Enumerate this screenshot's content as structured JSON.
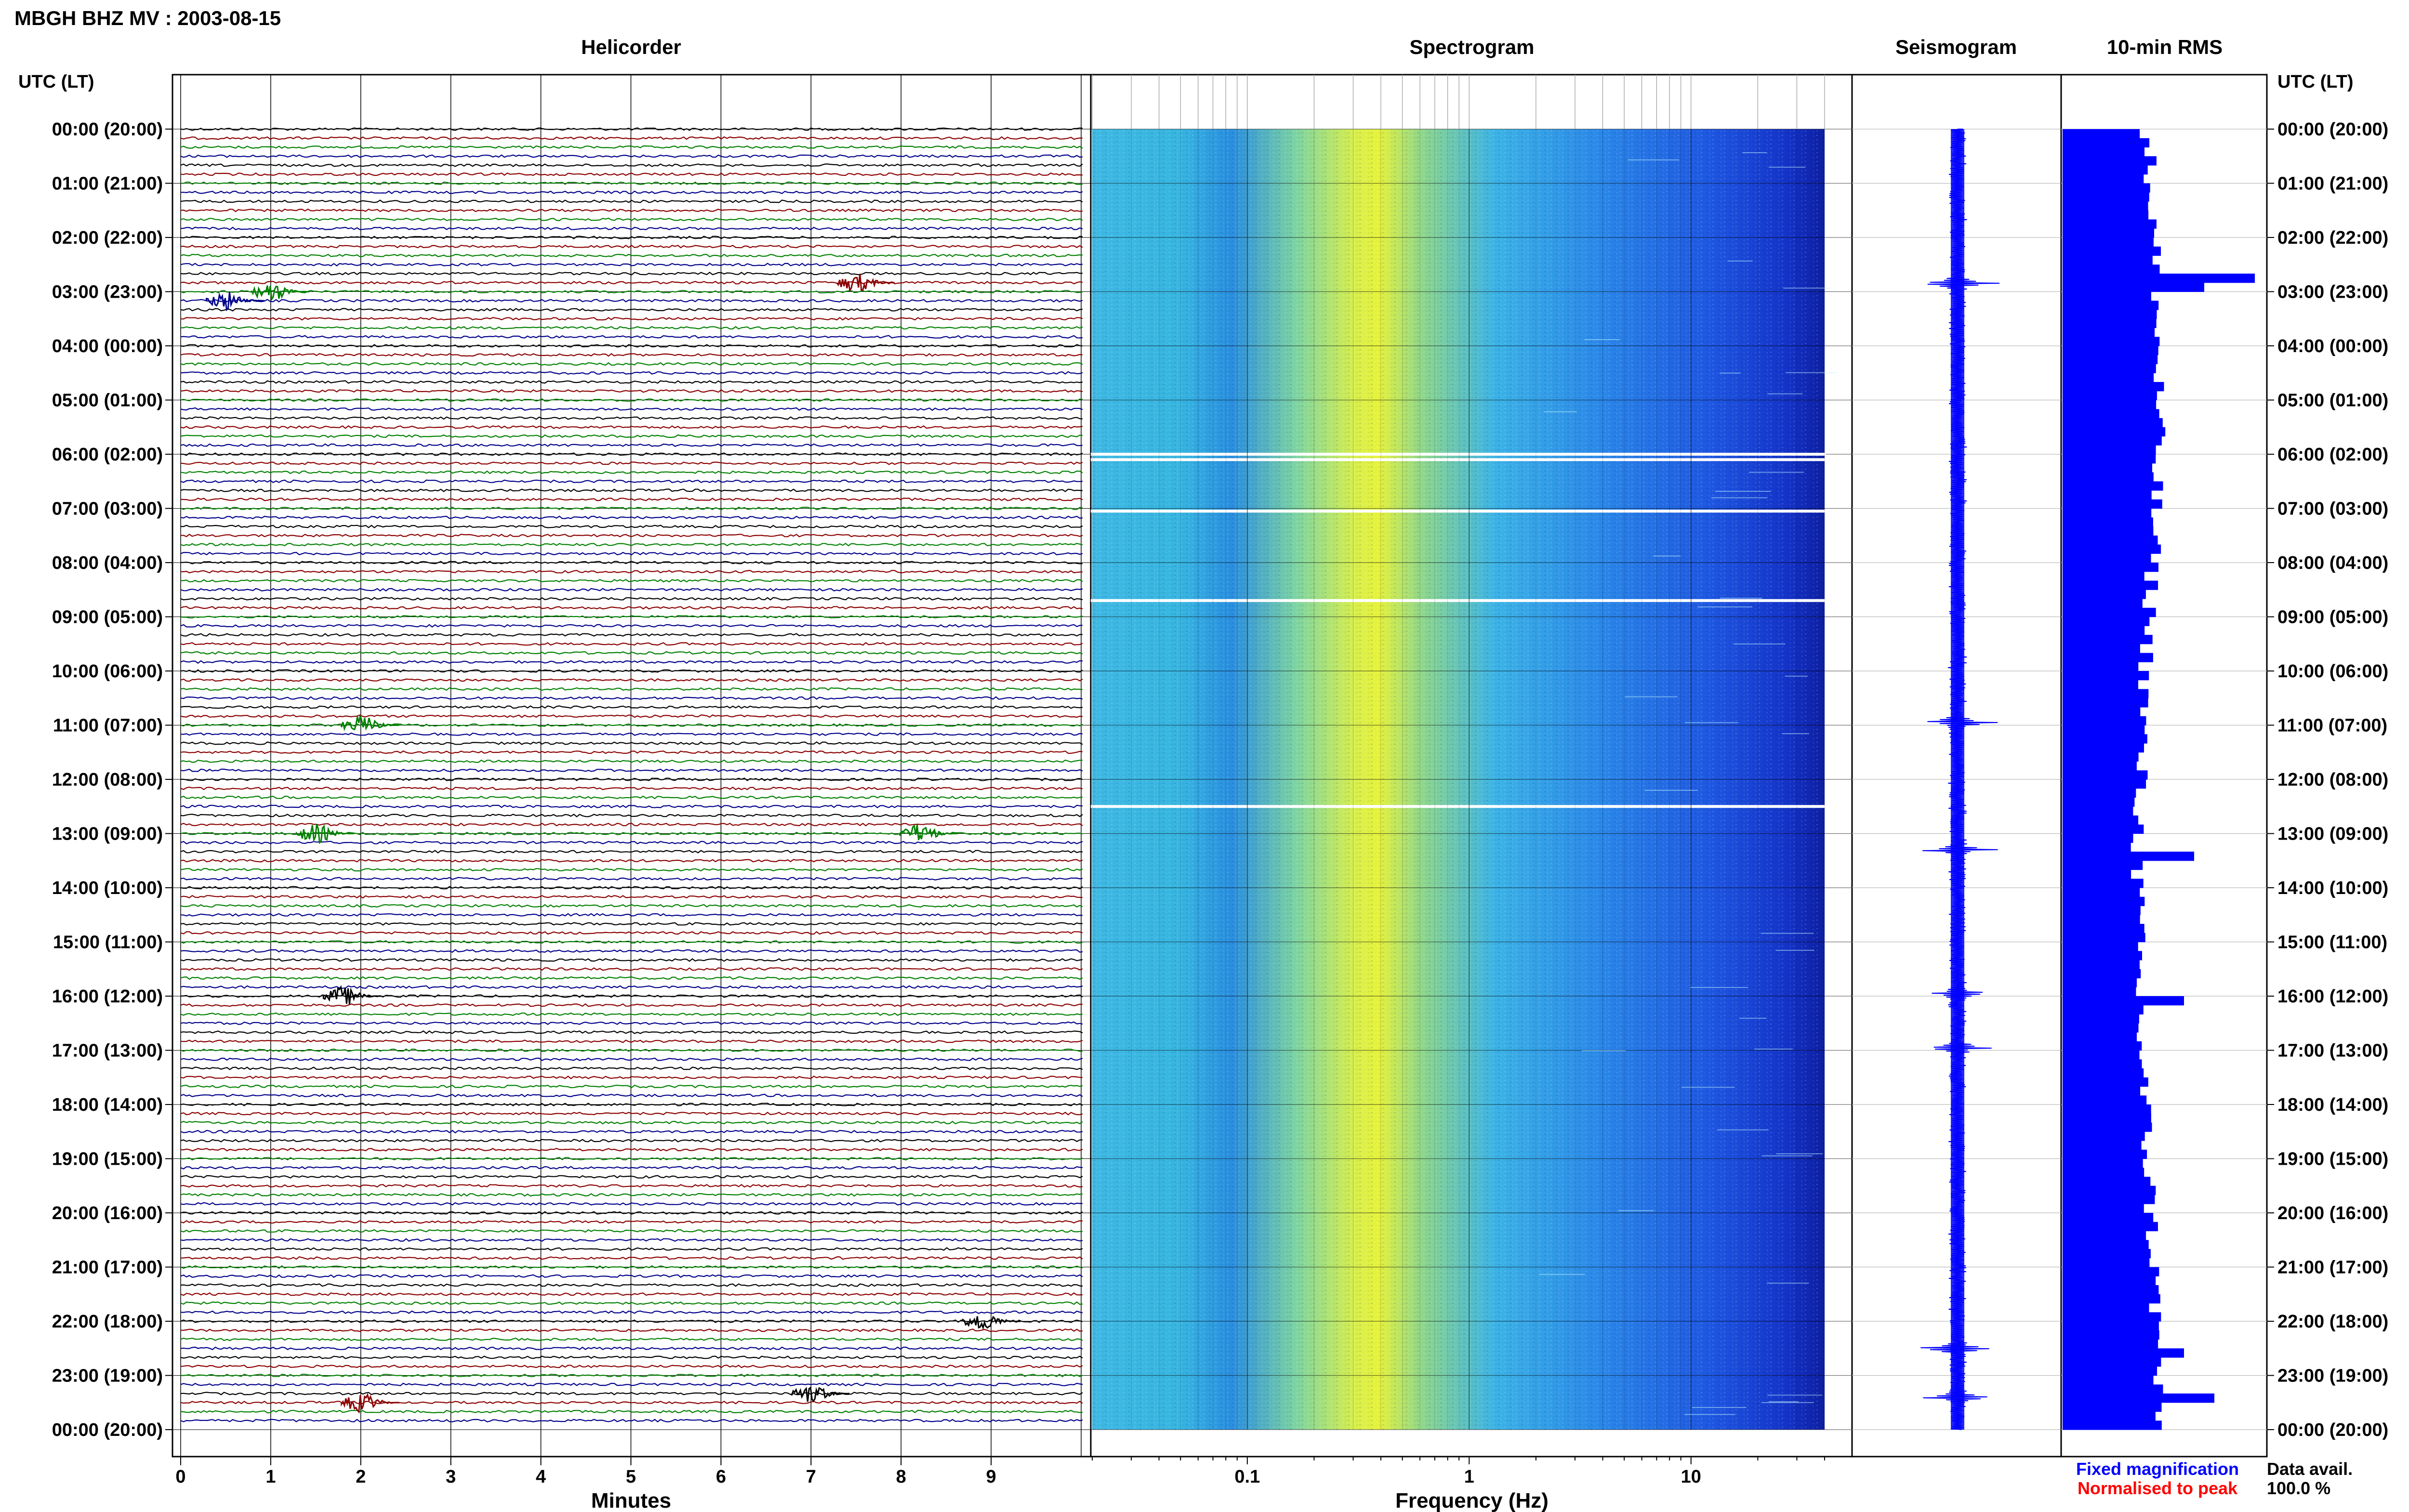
{
  "header": {
    "station_title": "MBGH BHZ MV : 2003-08-15"
  },
  "panels": {
    "helicorder": "Helicorder",
    "spectrogram": "Spectrogram",
    "seismogram": "Seismogram",
    "rms": "10-min RMS"
  },
  "axis": {
    "time_header_left": "UTC (LT)",
    "time_header_right": "UTC (LT)",
    "time_labels": [
      "00:00 (20:00)",
      "01:00 (21:00)",
      "02:00 (22:00)",
      "03:00 (23:00)",
      "04:00 (00:00)",
      "05:00 (01:00)",
      "06:00 (02:00)",
      "07:00 (03:00)",
      "08:00 (04:00)",
      "09:00 (05:00)",
      "10:00 (06:00)",
      "11:00 (07:00)",
      "12:00 (08:00)",
      "13:00 (09:00)",
      "14:00 (10:00)",
      "15:00 (11:00)",
      "16:00 (12:00)",
      "17:00 (13:00)",
      "18:00 (14:00)",
      "19:00 (15:00)",
      "20:00 (16:00)",
      "21:00 (17:00)",
      "22:00 (18:00)",
      "23:00 (19:00)",
      "00:00 (20:00)"
    ],
    "minutes_ticks": [
      "0",
      "1",
      "2",
      "3",
      "4",
      "5",
      "6",
      "7",
      "8",
      "9"
    ],
    "minutes_label": "Minutes",
    "freq_ticks": [
      "0.1",
      "1",
      "10"
    ],
    "freq_label": "Frequency (Hz)"
  },
  "legend": {
    "fixed_magnification": "Fixed magnification",
    "normalised_to_peak": "Normalised to peak",
    "data_avail_label": "Data avail.",
    "data_avail_value": "100.0 %"
  },
  "colors": {
    "trace_cycle": [
      "#000000",
      "#8b0000",
      "#008000",
      "#00008b"
    ],
    "fixed_magnification": "#0000ff",
    "normalised_to_peak": "#ff0000",
    "rms_bar": "#0000ff",
    "seismogram": "#0000ff"
  },
  "chart_data": [
    {
      "type": "line",
      "title": "Helicorder",
      "xlabel": "Minutes",
      "xlim": [
        0,
        10
      ],
      "rows": 144,
      "minutes_per_row": 10,
      "events": [
        {
          "hour": 2.9,
          "minute": 7.5
        },
        {
          "hour": 3.0,
          "minute": 1.0
        },
        {
          "hour": 3.2,
          "minute": 0.5
        },
        {
          "hour": 11.0,
          "minute": 2.0
        },
        {
          "hour": 13.0,
          "minute": 1.5
        },
        {
          "hour": 13.0,
          "minute": 8.2
        },
        {
          "hour": 16.0,
          "minute": 1.8
        },
        {
          "hour": 22.0,
          "minute": 8.9
        },
        {
          "hour": 23.3,
          "minute": 7.0
        },
        {
          "hour": 23.5,
          "minute": 2.0
        }
      ]
    },
    {
      "type": "heatmap",
      "title": "Spectrogram",
      "xlabel": "Frequency (Hz)",
      "xscale": "log",
      "xlim": [
        0.02,
        40
      ],
      "ylim_hours": [
        0,
        24
      ],
      "peak_frequency_hz": 0.45,
      "gaps_hours": [
        6.0,
        6.1,
        7.05,
        8.7,
        12.5
      ]
    },
    {
      "type": "line",
      "title": "Seismogram",
      "ylim_hours": [
        0,
        24
      ],
      "spikes_hours": [
        2.85,
        10.95,
        13.3,
        15.95,
        16.95,
        22.5,
        23.4
      ]
    },
    {
      "type": "bar",
      "title": "10-min RMS",
      "orientation": "horizontal",
      "ylim_hours": [
        0,
        24
      ],
      "bars_per_hour": 6,
      "relative_peaks": [
        {
          "hour": 2.7,
          "value": 0.95
        },
        {
          "hour": 2.85,
          "value": 0.7
        },
        {
          "hour": 13.3,
          "value": 0.65
        },
        {
          "hour": 16.0,
          "value": 0.6
        },
        {
          "hour": 22.5,
          "value": 0.6
        },
        {
          "hour": 23.4,
          "value": 0.75
        }
      ]
    }
  ]
}
